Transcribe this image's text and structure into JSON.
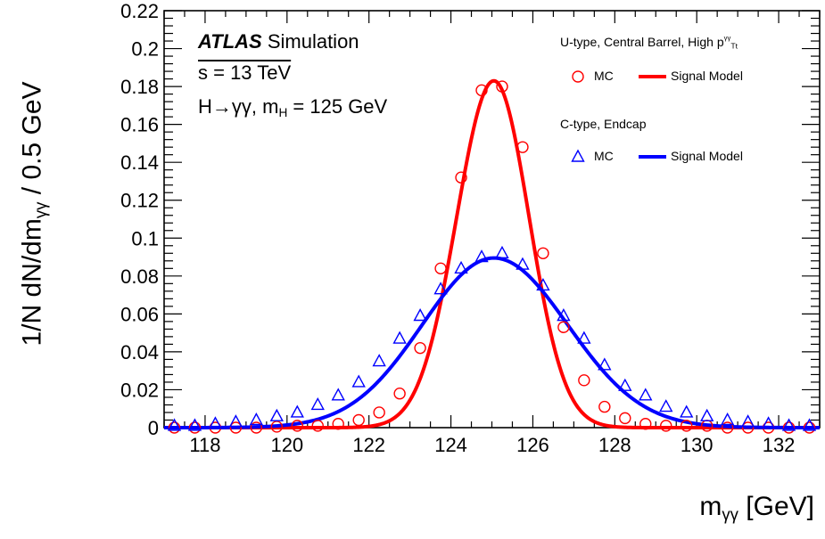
{
  "chart_data": {
    "type": "scatter",
    "ylabel": "1/N dN/dm",
    "ylabel_sub": "γγ",
    "ylabel_suffix": " / 0.5 GeV",
    "xlabel": "m",
    "xlabel_sub": "γγ",
    "xlabel_suffix": " [GeV]",
    "xlim": [
      117,
      133
    ],
    "ylim": [
      0,
      0.22
    ],
    "x_ticks": [
      118,
      120,
      122,
      124,
      126,
      128,
      130,
      132
    ],
    "y_ticks": [
      0,
      0.02,
      0.04,
      0.06,
      0.08,
      0.1,
      0.12,
      0.14,
      0.16,
      0.18,
      0.2,
      0.22
    ],
    "y_tick_labels": [
      "0",
      "0.02",
      "0.04",
      "0.06",
      "0.08",
      "0.1",
      "0.12",
      "0.14",
      "0.16",
      "0.18",
      "0.2",
      "0.22"
    ],
    "grid": false,
    "legend_position": "top-right",
    "annotations": {
      "atlas": "ATLAS",
      "simulation": "Simulation",
      "energy": "s = 13 TeV",
      "channel": "H→γγ, m",
      "channel_sub": "H",
      "channel_suffix": " = 125 GeV"
    },
    "groups": [
      {
        "title": "U-type, Central Barrel, High p",
        "title_sup": "γγ",
        "title_sub": "Tt"
      },
      {
        "title": "C-type, Endcap"
      }
    ],
    "series": [
      {
        "name": "MC",
        "group": 0,
        "marker": "circle",
        "color": "#ff0000",
        "x": [
          117.25,
          117.75,
          118.25,
          118.75,
          119.25,
          119.75,
          120.25,
          120.75,
          121.25,
          121.75,
          122.25,
          122.75,
          123.25,
          123.75,
          124.25,
          124.75,
          125.25,
          125.75,
          126.25,
          126.75,
          127.25,
          127.75,
          128.25,
          128.75,
          129.25,
          129.75,
          130.25,
          130.75,
          131.25,
          131.75,
          132.25,
          132.75
        ],
        "y": [
          0.0,
          0.0,
          0.0,
          0.0,
          0.0,
          0.0005,
          0.001,
          0.001,
          0.002,
          0.004,
          0.008,
          0.018,
          0.042,
          0.084,
          0.132,
          0.178,
          0.18,
          0.148,
          0.092,
          0.053,
          0.025,
          0.011,
          0.005,
          0.002,
          0.001,
          0.001,
          0.001,
          0.0,
          0.0,
          0.0,
          0.0,
          0.0
        ]
      },
      {
        "name": "Signal Model",
        "group": 0,
        "marker": "line",
        "color": "#ff0000",
        "model": {
          "mean": 125.05,
          "peak": 0.183,
          "sigma_left": 0.91,
          "sigma_right": 0.86
        }
      },
      {
        "name": "MC",
        "group": 1,
        "marker": "triangle",
        "color": "#0000ff",
        "x": [
          117.25,
          117.75,
          118.25,
          118.75,
          119.25,
          119.75,
          120.25,
          120.75,
          121.25,
          121.75,
          122.25,
          122.75,
          123.25,
          123.75,
          124.25,
          124.75,
          125.25,
          125.75,
          126.25,
          126.75,
          127.25,
          127.75,
          128.25,
          128.75,
          129.25,
          129.75,
          130.25,
          130.75,
          131.25,
          131.75,
          132.25,
          132.75
        ],
        "y": [
          0.001,
          0.001,
          0.002,
          0.003,
          0.004,
          0.006,
          0.008,
          0.012,
          0.017,
          0.024,
          0.035,
          0.047,
          0.059,
          0.073,
          0.084,
          0.09,
          0.092,
          0.086,
          0.075,
          0.059,
          0.047,
          0.033,
          0.022,
          0.017,
          0.011,
          0.008,
          0.006,
          0.004,
          0.003,
          0.002,
          0.001,
          0.001
        ]
      },
      {
        "name": "Signal Model",
        "group": 1,
        "marker": "line",
        "color": "#0000ff",
        "model": {
          "mean": 125.05,
          "peak": 0.0895,
          "sigma_left": 1.75,
          "sigma_right": 1.8
        }
      }
    ]
  }
}
